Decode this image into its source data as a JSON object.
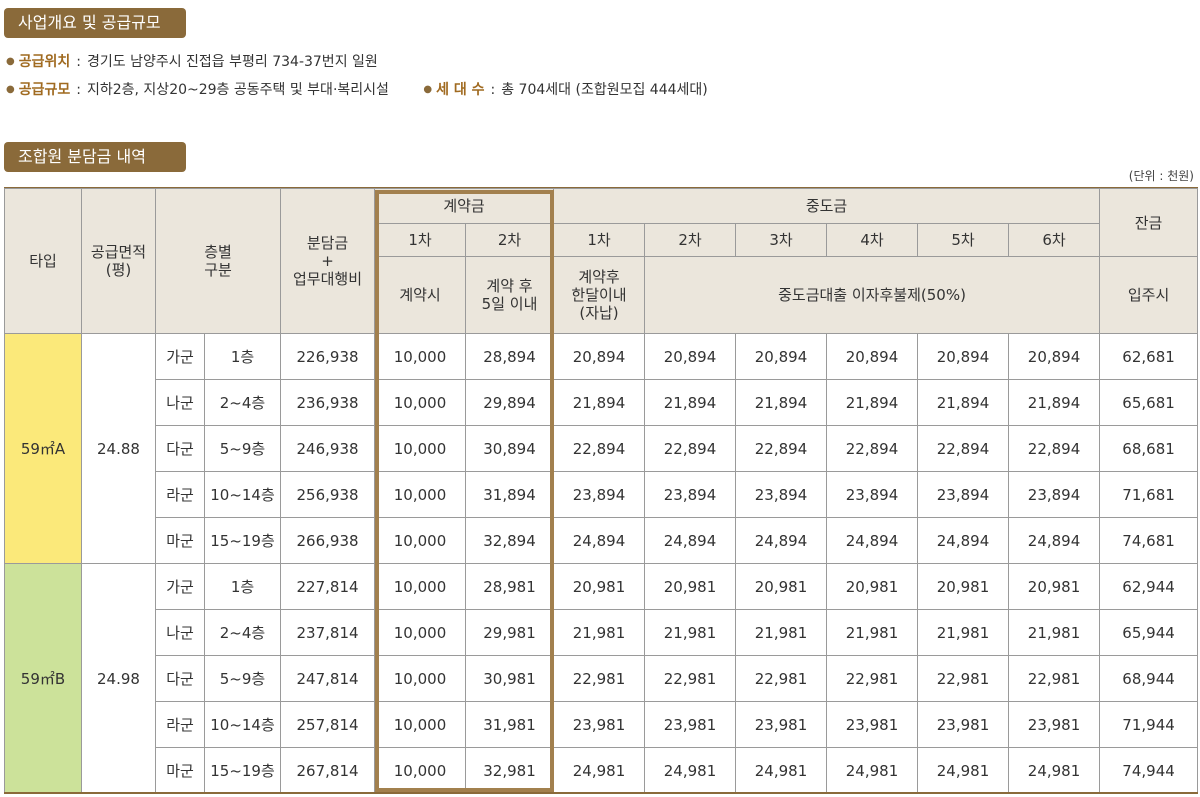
{
  "section1": {
    "title": "사업개요 및 공급규모"
  },
  "info": {
    "location_label": "공급위치",
    "location_value": "경기도 남양주시 진접읍 부평리 734-37번지 일원",
    "scale_label": "공급규모",
    "scale_value": "지하2층, 지상20~29층 공동주택 및 부대·복리시설",
    "households_label": "세 대 수",
    "households_value": "총 704세대 (조합원모집 444세대)"
  },
  "section2": {
    "title": "조합원 분담금 내역",
    "unit": "(단위 : 천원)"
  },
  "table": {
    "headers": {
      "type": "타입",
      "area_line1": "공급면적",
      "area_line2": "(평)",
      "floor_line1": "층별",
      "floor_line2": "구분",
      "cost_line1": "분담금",
      "cost_line2": "+",
      "cost_line3": "업무대행비",
      "contract": "계약금",
      "middle": "중도금",
      "balance": "잔금",
      "c1": "1차",
      "c2": "2차",
      "m1": "1차",
      "m2": "2차",
      "m3": "3차",
      "m4": "4차",
      "m5": "5차",
      "m6": "6차",
      "c1_sub": "계약시",
      "c2_sub_line1": "계약 후",
      "c2_sub_line2": "5일 이내",
      "m1_sub_line1": "계약후",
      "m1_sub_line2": "한달이내",
      "m1_sub_line3": "(자납)",
      "m_rest_sub": "중도금대출 이자후불제(50%)",
      "balance_sub": "입주시"
    },
    "groups": [
      {
        "type": "59㎡A",
        "area": "24.88",
        "rows": [
          {
            "group": "가군",
            "floors": "1층",
            "cost": "226,938",
            "c1": "10,000",
            "c2": "28,894",
            "m": [
              "20,894",
              "20,894",
              "20,894",
              "20,894",
              "20,894",
              "20,894"
            ],
            "balance": "62,681"
          },
          {
            "group": "나군",
            "floors": "2~4층",
            "cost": "236,938",
            "c1": "10,000",
            "c2": "29,894",
            "m": [
              "21,894",
              "21,894",
              "21,894",
              "21,894",
              "21,894",
              "21,894"
            ],
            "balance": "65,681"
          },
          {
            "group": "다군",
            "floors": "5~9층",
            "cost": "246,938",
            "c1": "10,000",
            "c2": "30,894",
            "m": [
              "22,894",
              "22,894",
              "22,894",
              "22,894",
              "22,894",
              "22,894"
            ],
            "balance": "68,681"
          },
          {
            "group": "라군",
            "floors": "10~14층",
            "cost": "256,938",
            "c1": "10,000",
            "c2": "31,894",
            "m": [
              "23,894",
              "23,894",
              "23,894",
              "23,894",
              "23,894",
              "23,894"
            ],
            "balance": "71,681"
          },
          {
            "group": "마군",
            "floors": "15~19층",
            "cost": "266,938",
            "c1": "10,000",
            "c2": "32,894",
            "m": [
              "24,894",
              "24,894",
              "24,894",
              "24,894",
              "24,894",
              "24,894"
            ],
            "balance": "74,681"
          }
        ]
      },
      {
        "type": "59㎡B",
        "area": "24.98",
        "rows": [
          {
            "group": "가군",
            "floors": "1층",
            "cost": "227,814",
            "c1": "10,000",
            "c2": "28,981",
            "m": [
              "20,981",
              "20,981",
              "20,981",
              "20,981",
              "20,981",
              "20,981"
            ],
            "balance": "62,944"
          },
          {
            "group": "나군",
            "floors": "2~4층",
            "cost": "237,814",
            "c1": "10,000",
            "c2": "29,981",
            "m": [
              "21,981",
              "21,981",
              "21,981",
              "21,981",
              "21,981",
              "21,981"
            ],
            "balance": "65,944"
          },
          {
            "group": "다군",
            "floors": "5~9층",
            "cost": "247,814",
            "c1": "10,000",
            "c2": "30,981",
            "m": [
              "22,981",
              "22,981",
              "22,981",
              "22,981",
              "22,981",
              "22,981"
            ],
            "balance": "68,944"
          },
          {
            "group": "라군",
            "floors": "10~14층",
            "cost": "257,814",
            "c1": "10,000",
            "c2": "31,981",
            "m": [
              "23,981",
              "23,981",
              "23,981",
              "23,981",
              "23,981",
              "23,981"
            ],
            "balance": "71,944"
          },
          {
            "group": "마군",
            "floors": "15~19층",
            "cost": "267,814",
            "c1": "10,000",
            "c2": "32,981",
            "m": [
              "24,981",
              "24,981",
              "24,981",
              "24,981",
              "24,981",
              "24,981"
            ],
            "balance": "74,944"
          }
        ]
      }
    ]
  },
  "colors": {
    "accent": "#8a6a3a",
    "label_text": "#a06a20",
    "header_bg": "#ebe6dc",
    "type_a_bg": "#fbe97a",
    "type_b_bg": "#cce29a",
    "highlight_border": "#a2804e"
  }
}
